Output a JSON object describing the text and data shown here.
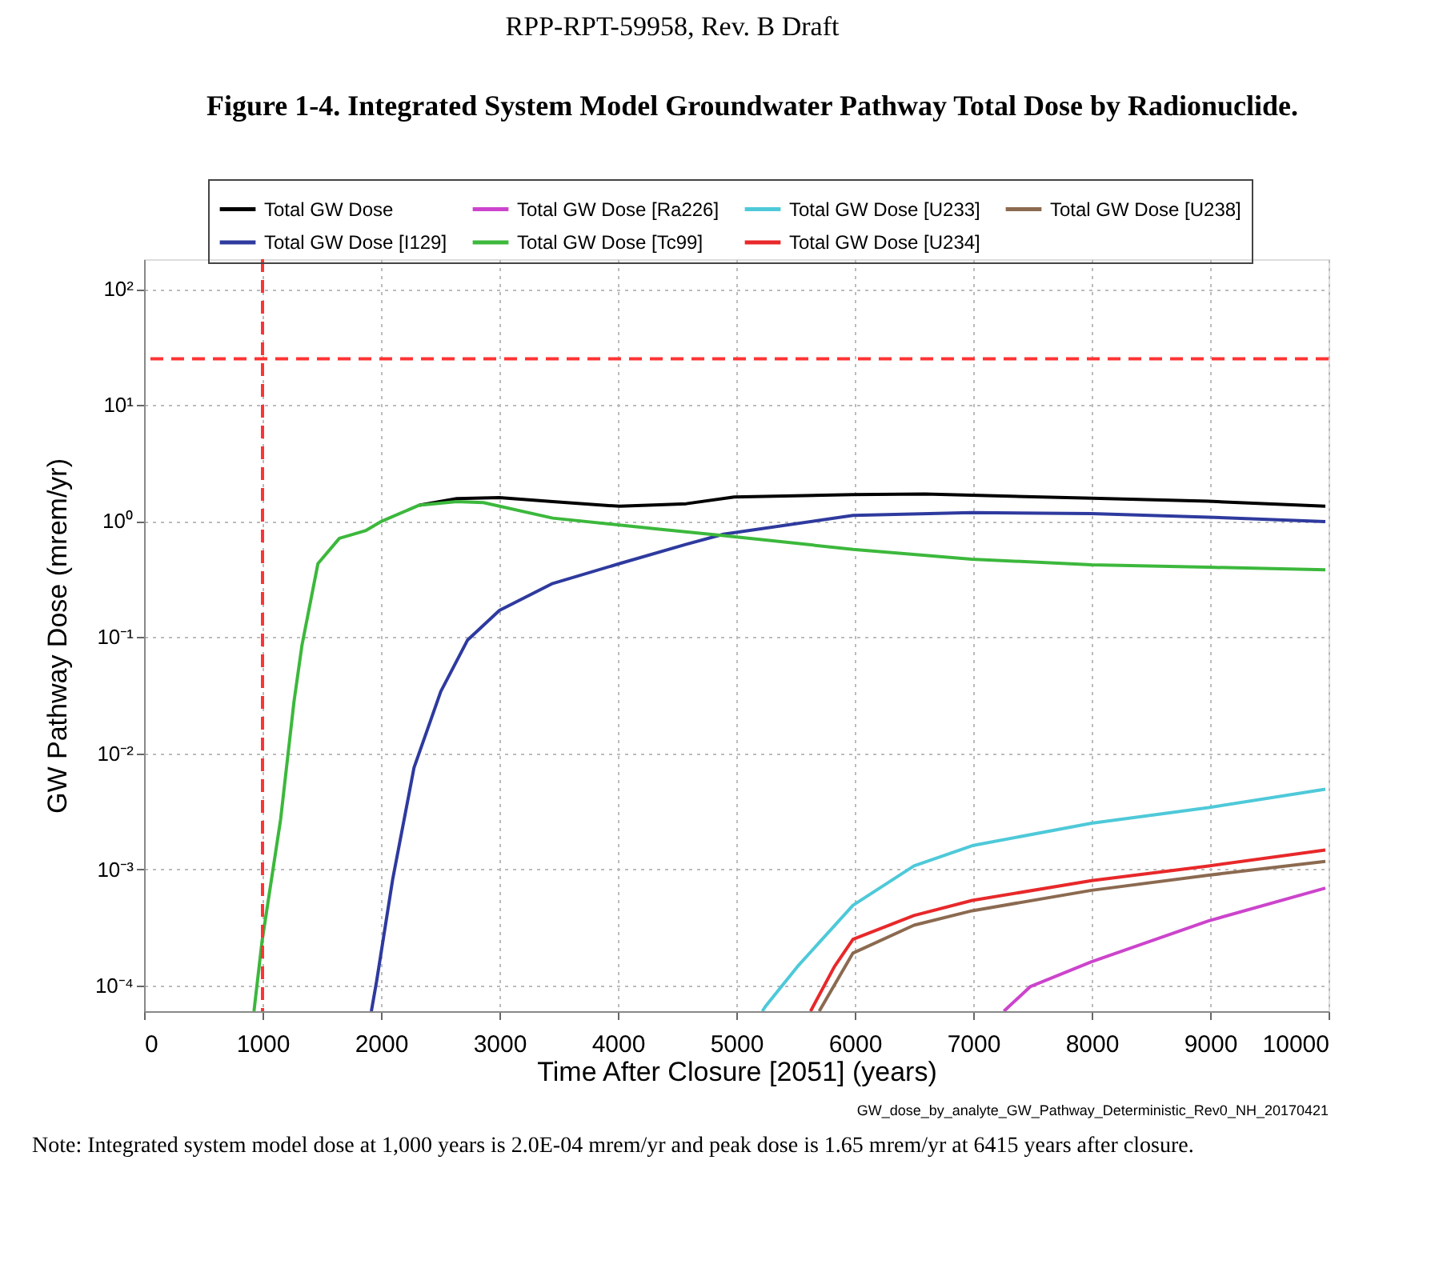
{
  "chart_data": {
    "type": "line",
    "title": "Figure 1-4.  Integrated System Model Groundwater Pathway Total Dose by Radionuclide.",
    "xlabel": "Time After Closure [2051] (years)",
    "ylabel": "GW Pathway Dose (mrem/yr)",
    "annotations": [
      "RPP-RPT-59958, Rev. B Draft",
      "GW_dose_by_analyte_GW_Pathway_Deterministic_Rev0_NH_20170421",
      "Note: Integrated system model dose at 1,000 years is 2.0E-04 mrem/yr and peak dose is 1.65 mrem/yr at 6415 years after closure."
    ],
    "log": "y",
    "grid": true,
    "legend": "top",
    "line_style": "solid",
    "xlim": [
      0,
      10000
    ],
    "xticks": [
      0,
      1000,
      2000,
      3000,
      4000,
      5000,
      6000,
      7000,
      8000,
      9000,
      10000
    ],
    "ylim": [
      6e-05,
      180
    ],
    "yticks": [
      {
        "value": 0.0001,
        "label": "10⁻⁴"
      },
      {
        "value": 0.001,
        "label": "10⁻³"
      },
      {
        "value": 0.01,
        "label": "10⁻²"
      },
      {
        "value": 0.1,
        "label": "10⁻¹"
      },
      {
        "value": 1,
        "label": "10⁰"
      },
      {
        "value": 10,
        "label": "10¹"
      },
      {
        "value": 100,
        "label": "10²"
      }
    ],
    "ref_lines": [
      {
        "axis": "y",
        "value": 25,
        "color": "#ff3333",
        "line_style": "dashed"
      },
      {
        "axis": "x",
        "value": 1000,
        "color": "#ff3333",
        "line_style": "dashed"
      }
    ],
    "series": [
      {
        "name": "Total GW Dose",
        "color": "#000000",
        "x": [
          2324,
          2640,
          3000,
          3450,
          4014,
          4351,
          4577,
          4982,
          5986,
          6590,
          6986,
          8000,
          8986,
          9973
        ],
        "values": [
          1.37,
          1.56,
          1.59,
          1.47,
          1.34,
          1.38,
          1.41,
          1.61,
          1.69,
          1.71,
          1.67,
          1.57,
          1.48,
          1.34
        ]
      },
      {
        "name": "Total GW Dose [I129]",
        "color": "#2e3a9e",
        "x": [
          1919,
          1964,
          2099,
          2279,
          2505,
          2730,
          3000,
          3450,
          4014,
          4577,
          4892,
          5986,
          6986,
          8000,
          8986,
          9973
        ],
        "values": [
          6e-05,
          0.00011,
          0.00082,
          0.0075,
          0.034,
          0.094,
          0.17,
          0.29,
          0.43,
          0.63,
          0.77,
          1.12,
          1.18,
          1.16,
          1.08,
          0.99
        ]
      },
      {
        "name": "Total GW Dose [Ra226]",
        "color": "#cc44cc",
        "x": [
          7259,
          7484,
          8000,
          8986,
          9973
        ],
        "values": [
          6e-05,
          9.8e-05,
          0.00016,
          0.00036,
          0.00069
        ]
      },
      {
        "name": "Total GW Dose [Tc99]",
        "color": "#3cb83c",
        "x": [
          928,
          996,
          1153,
          1266,
          1333,
          1468,
          1649,
          1874,
          2009,
          2324,
          2640,
          2865,
          3450,
          4351,
          4892,
          5986,
          6986,
          8000,
          8986,
          9973
        ],
        "values": [
          6e-05,
          0.00024,
          0.0027,
          0.028,
          0.085,
          0.43,
          0.71,
          0.83,
          1.0,
          1.37,
          1.47,
          1.44,
          1.06,
          0.85,
          0.75,
          0.57,
          0.47,
          0.42,
          0.4,
          0.38
        ]
      },
      {
        "name": "Total GW Dose [U233]",
        "color": "#4ec9d9",
        "x": [
          5220,
          5246,
          5515,
          5985,
          6500,
          6992,
          8000,
          8986,
          9973
        ],
        "values": [
          6e-05,
          6.6e-05,
          0.000145,
          0.00049,
          0.00107,
          0.0016,
          0.0025,
          0.0034,
          0.0049
        ]
      },
      {
        "name": "Total GW Dose [U234]",
        "color": "#e8282a",
        "x": [
          5627,
          5828,
          5985,
          6500,
          6992,
          8000,
          8986,
          9973
        ],
        "values": [
          6e-05,
          0.000145,
          0.00025,
          0.0004,
          0.00054,
          0.0008,
          0.00107,
          0.00147
        ]
      },
      {
        "name": "Total GW Dose [U238]",
        "color": "#8b6a50",
        "x": [
          5700,
          5985,
          6500,
          6992,
          8000,
          8986,
          9973
        ],
        "values": [
          6e-05,
          0.00019,
          0.00033,
          0.00044,
          0.00066,
          0.00089,
          0.00117
        ]
      }
    ]
  }
}
